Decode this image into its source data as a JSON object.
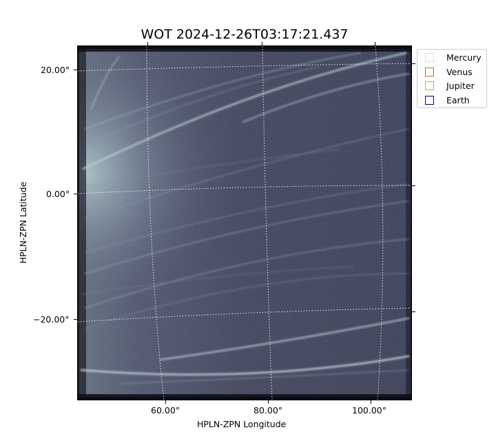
{
  "title": "WOT 2024-12-26T03:17:21.437",
  "axes": {
    "xlabel": "HPLN-ZPN Longitude",
    "ylabel": "HPLN-ZPN Latitude",
    "xticks": [
      "60.00°",
      "80.00°",
      "100.00°"
    ],
    "yticks": [
      "20.00°",
      "0.00°",
      "−20.00°"
    ]
  },
  "legend": {
    "placement": "outside-top-right",
    "items": [
      {
        "label": "Mercury",
        "color": "#dddddd"
      },
      {
        "label": "Venus",
        "color": "#d2691e"
      },
      {
        "label": "Jupiter",
        "color": "#daa520"
      },
      {
        "label": "Earth",
        "color": "#000080"
      }
    ]
  },
  "image": {
    "description_colormap": "bone",
    "grid": true,
    "grid_color": "#ffffff"
  }
}
